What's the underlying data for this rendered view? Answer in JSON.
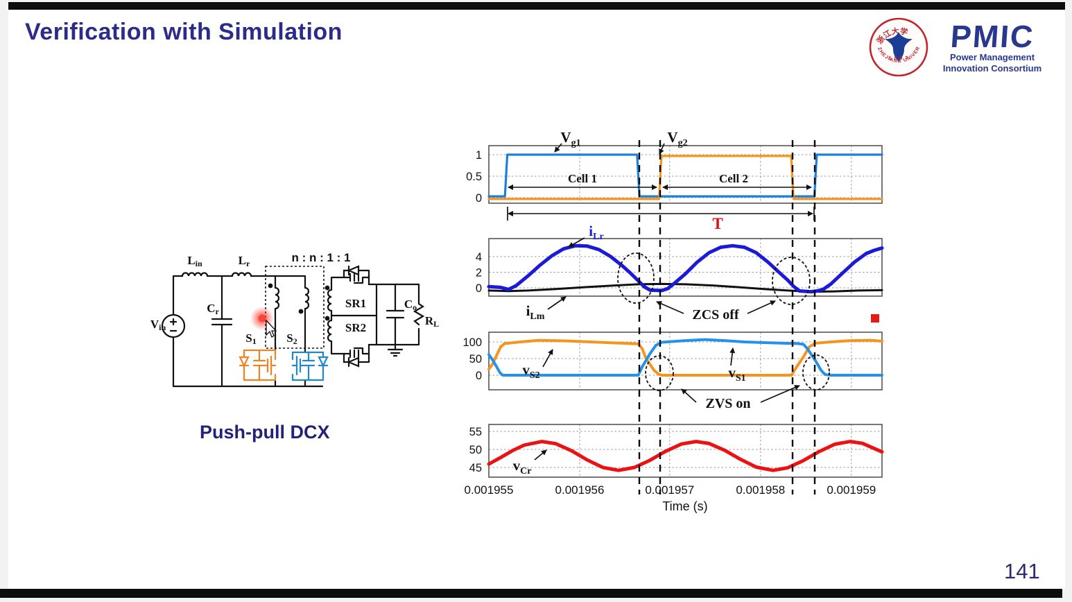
{
  "slide": {
    "title": "Verification with Simulation",
    "caption": "Push-pull DCX",
    "page_number": "141"
  },
  "logos": {
    "university_seal": {
      "top_text": "浙江大学",
      "year": "1 8 9 7",
      "bottom_text": "ZHEJIANG UNIVERSITY",
      "ring_color": "#c4242b",
      "emblem_color": "#1c3e94"
    },
    "pmic": {
      "acronym": "PMIC",
      "line1": "Power Management",
      "line2": "Innovation Consortium",
      "color": "#28388f"
    }
  },
  "circuit": {
    "labels": {
      "vin": {
        "main": "V",
        "sub": "in"
      },
      "lin": {
        "main": "L",
        "sub": "in"
      },
      "lr": {
        "main": "L",
        "sub": "r"
      },
      "cr": {
        "main": "C",
        "sub": "r"
      },
      "s1": {
        "main": "S",
        "sub": "1"
      },
      "s2": {
        "main": "S",
        "sub": "2"
      },
      "co": {
        "main": "C",
        "sub": "o"
      },
      "rl": {
        "main": "R",
        "sub": "L"
      },
      "ratio": "n : n : 1 : 1",
      "sr1": "SR1",
      "sr2": "SR2"
    }
  },
  "chart_data": {
    "type": "line",
    "layout": "4 stacked time-domain panels, shared x-axis",
    "xlabel": "Time (s)",
    "xticks": [
      {
        "t": 0.0,
        "label": "0.001955"
      },
      {
        "t": 0.231,
        "label": "0.001956"
      },
      {
        "t": 0.46,
        "label": "0.001957"
      },
      {
        "t": 0.691,
        "label": "0.001958"
      },
      {
        "t": 0.922,
        "label": "0.001959"
      }
    ],
    "event_lines_t": [
      0.383,
      0.436,
      0.772,
      0.829
    ],
    "panels": [
      {
        "name": "gate-signals",
        "ylim": [
          -0.13,
          1.21
        ],
        "yticks": [
          {
            "v": 1,
            "label": "1"
          },
          {
            "v": 0.5,
            "label": "0.5"
          },
          {
            "v": 0,
            "label": "0"
          }
        ],
        "labels": {
          "vg1": {
            "main": "V",
            "sub": "g1"
          },
          "vg2": {
            "main": "V",
            "sub": "g2"
          },
          "cell1": "Cell 1",
          "cell2": "Cell 2",
          "period": "T"
        },
        "series": [
          {
            "name": "Vg1",
            "color": "#1b7fe0",
            "width": 3.2,
            "points": [
              [
                0,
                0.03
              ],
              [
                0.041,
                0.03
              ],
              [
                0.047,
                1
              ],
              [
                0.377,
                1
              ],
              [
                0.383,
                0.03
              ],
              [
                0.828,
                0.03
              ],
              [
                0.834,
                1
              ],
              [
                1,
                1
              ]
            ]
          },
          {
            "name": "Vg2",
            "color": "#f7941d",
            "width": 3.2,
            "points": [
              [
                0,
                -0.03
              ],
              [
                0.433,
                -0.03
              ],
              [
                0.439,
                0.97
              ],
              [
                0.769,
                0.97
              ],
              [
                0.775,
                -0.03
              ],
              [
                1,
                -0.03
              ]
            ]
          }
        ]
      },
      {
        "name": "resonant-currents",
        "ylim": [
          -1.07,
          6.31
        ],
        "yticks": [
          {
            "v": 4,
            "label": "4"
          },
          {
            "v": 2,
            "label": "2"
          },
          {
            "v": 0,
            "label": "0"
          }
        ],
        "labels": {
          "ilr": {
            "main": "i",
            "sub": "Lr"
          },
          "ilm": {
            "main": "i",
            "sub": "Lm"
          },
          "zcs": "ZCS off"
        },
        "series": [
          {
            "name": "iLm",
            "color": "#111111",
            "width": 3,
            "points": [
              [
                0,
                -0.35
              ],
              [
                0.05,
                -0.42
              ],
              [
                0.1,
                -0.35
              ],
              [
                0.17,
                -0.15
              ],
              [
                0.25,
                0.1
              ],
              [
                0.32,
                0.3
              ],
              [
                0.38,
                0.45
              ],
              [
                0.44,
                0.5
              ],
              [
                0.5,
                0.45
              ],
              [
                0.57,
                0.3
              ],
              [
                0.63,
                0.1
              ],
              [
                0.7,
                -0.15
              ],
              [
                0.76,
                -0.35
              ],
              [
                0.82,
                -0.5
              ],
              [
                0.88,
                -0.45
              ],
              [
                0.94,
                -0.35
              ],
              [
                1,
                -0.3
              ]
            ]
          },
          {
            "name": "iLr",
            "color": "#1a1ad8",
            "width": 5,
            "points": [
              [
                0,
                0.15
              ],
              [
                0.03,
                0.05
              ],
              [
                0.05,
                -0.2
              ],
              [
                0.07,
                0.3
              ],
              [
                0.1,
                1.55
              ],
              [
                0.13,
                2.9
              ],
              [
                0.16,
                4.1
              ],
              [
                0.19,
                5.0
              ],
              [
                0.22,
                5.4
              ],
              [
                0.25,
                5.35
              ],
              [
                0.28,
                4.9
              ],
              [
                0.31,
                4.0
              ],
              [
                0.34,
                2.8
              ],
              [
                0.36,
                1.9
              ],
              [
                0.38,
                0.9
              ],
              [
                0.395,
                0.15
              ],
              [
                0.41,
                -0.3
              ],
              [
                0.44,
                -0.35
              ],
              [
                0.455,
                -0.1
              ],
              [
                0.47,
                0.5
              ],
              [
                0.5,
                1.8
              ],
              [
                0.53,
                3.3
              ],
              [
                0.56,
                4.5
              ],
              [
                0.59,
                5.2
              ],
              [
                0.62,
                5.4
              ],
              [
                0.65,
                5.2
              ],
              [
                0.68,
                4.5
              ],
              [
                0.71,
                3.3
              ],
              [
                0.74,
                1.9
              ],
              [
                0.76,
                1.0
              ],
              [
                0.775,
                0.2
              ],
              [
                0.79,
                -0.4
              ],
              [
                0.82,
                -0.5
              ],
              [
                0.835,
                -0.4
              ],
              [
                0.85,
                -0.2
              ],
              [
                0.87,
                0.5
              ],
              [
                0.9,
                1.9
              ],
              [
                0.93,
                3.3
              ],
              [
                0.96,
                4.4
              ],
              [
                0.98,
                4.8
              ],
              [
                1,
                5.1
              ]
            ]
          }
        ]
      },
      {
        "name": "switch-voltages",
        "ylim": [
          -43.8,
          129.2
        ],
        "yticks": [
          {
            "v": 100,
            "label": "100"
          },
          {
            "v": 50,
            "label": "50"
          },
          {
            "v": 0,
            "label": "0"
          }
        ],
        "labels": {
          "vs1": {
            "main": "v",
            "sub": "S1"
          },
          "vs2": {
            "main": "v",
            "sub": "S2"
          },
          "zvs": "ZVS on"
        },
        "series": [
          {
            "name": "vS2",
            "color": "#f7941d",
            "width": 4,
            "points": [
              [
                0,
                18
              ],
              [
                0.01,
                35
              ],
              [
                0.02,
                60
              ],
              [
                0.03,
                85
              ],
              [
                0.04,
                95
              ],
              [
                0.08,
                100
              ],
              [
                0.13,
                105
              ],
              [
                0.2,
                103
              ],
              [
                0.28,
                99
              ],
              [
                0.34,
                96
              ],
              [
                0.38,
                94
              ],
              [
                0.39,
                80
              ],
              [
                0.4,
                50
              ],
              [
                0.42,
                15
              ],
              [
                0.432,
                3
              ],
              [
                0.44,
                0
              ],
              [
                0.77,
                0
              ],
              [
                0.78,
                20
              ],
              [
                0.8,
                55
              ],
              [
                0.815,
                85
              ],
              [
                0.83,
                96
              ],
              [
                0.87,
                100
              ],
              [
                0.92,
                104
              ],
              [
                0.97,
                105
              ],
              [
                1,
                102
              ]
            ]
          },
          {
            "name": "vS1",
            "color": "#2491ea",
            "width": 4,
            "points": [
              [
                0,
                62
              ],
              [
                0.01,
                45
              ],
              [
                0.02,
                25
              ],
              [
                0.028,
                8
              ],
              [
                0.035,
                0
              ],
              [
                0.38,
                0
              ],
              [
                0.39,
                25
              ],
              [
                0.41,
                65
              ],
              [
                0.425,
                90
              ],
              [
                0.44,
                99
              ],
              [
                0.5,
                104
              ],
              [
                0.55,
                107
              ],
              [
                0.6,
                104
              ],
              [
                0.65,
                100
              ],
              [
                0.7,
                98
              ],
              [
                0.75,
                96
              ],
              [
                0.785,
                95
              ],
              [
                0.8,
                93
              ],
              [
                0.81,
                80
              ],
              [
                0.83,
                45
              ],
              [
                0.845,
                15
              ],
              [
                0.855,
                2
              ],
              [
                0.87,
                0
              ],
              [
                1,
                0
              ]
            ]
          }
        ]
      },
      {
        "name": "resonant-capacitor-voltage",
        "ylim": [
          42.3,
          56.9
        ],
        "yticks": [
          {
            "v": 55,
            "label": "55"
          },
          {
            "v": 50,
            "label": "50"
          },
          {
            "v": 45,
            "label": "45"
          }
        ],
        "labels": {
          "vcr": {
            "main": "v",
            "sub": "Cr"
          }
        },
        "series": [
          {
            "name": "vCr",
            "color": "#ea1212",
            "width": 5,
            "points": [
              [
                0,
                45.95
              ],
              [
                0.03,
                47.75
              ],
              [
                0.06,
                49.65
              ],
              [
                0.09,
                51.2
              ],
              [
                0.135,
                52.2
              ],
              [
                0.17,
                51.6
              ],
              [
                0.21,
                49.65
              ],
              [
                0.25,
                47.1
              ],
              [
                0.29,
                45.0
              ],
              [
                0.33,
                44.2
              ],
              [
                0.37,
                45.0
              ],
              [
                0.41,
                47.0
              ],
              [
                0.45,
                49.5
              ],
              [
                0.49,
                51.5
              ],
              [
                0.527,
                52.2
              ],
              [
                0.56,
                51.65
              ],
              [
                0.6,
                49.75
              ],
              [
                0.64,
                47.25
              ],
              [
                0.68,
                45.1
              ],
              [
                0.723,
                44.2
              ],
              [
                0.76,
                44.9
              ],
              [
                0.8,
                46.9
              ],
              [
                0.84,
                49.4
              ],
              [
                0.88,
                51.45
              ],
              [
                0.919,
                52.2
              ],
              [
                0.95,
                51.7
              ],
              [
                1,
                49.3
              ]
            ]
          }
        ]
      }
    ]
  }
}
